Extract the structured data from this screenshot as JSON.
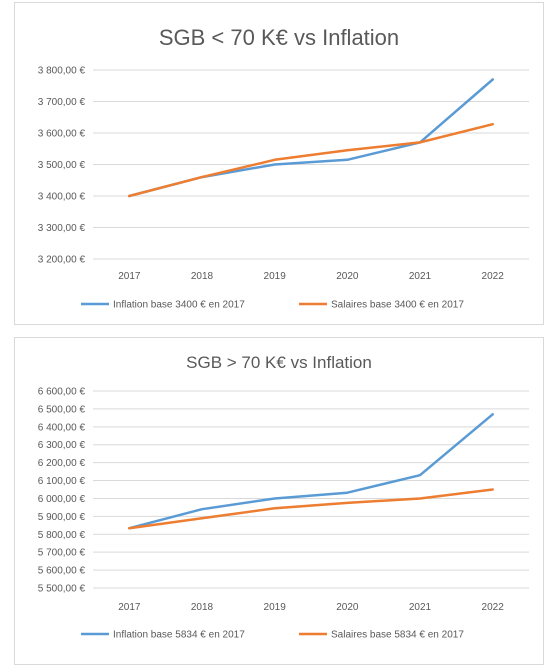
{
  "chart_data": [
    {
      "type": "line",
      "title": "SGB < 70 K€ vs Inflation",
      "categories": [
        "2017",
        "2018",
        "2019",
        "2020",
        "2021",
        "2022"
      ],
      "ylim": [
        3200,
        3800
      ],
      "ystep": 100,
      "yticks": [
        "3 200,00 €",
        "3 300,00 €",
        "3 400,00 €",
        "3 500,00 €",
        "3 600,00 €",
        "3 700,00 €",
        "3 800,00 €"
      ],
      "grid": true,
      "legend_position": "bottom",
      "series": [
        {
          "name": "Inflation base 3400 € en 2017",
          "color": "#5b9bd5",
          "values": [
            3400,
            3460,
            3500,
            3515,
            3570,
            3770
          ]
        },
        {
          "name": "Salaires base 3400 € en 2017",
          "color": "#ed7d31",
          "values": [
            3400,
            3460,
            3515,
            3545,
            3570,
            3628
          ]
        }
      ]
    },
    {
      "type": "line",
      "title": "SGB > 70 K€ vs Inflation",
      "categories": [
        "2017",
        "2018",
        "2019",
        "2020",
        "2021",
        "2022"
      ],
      "ylim": [
        5500,
        6600
      ],
      "ystep": 100,
      "yticks": [
        "5 500,00 €",
        "5 600,00 €",
        "5 700,00 €",
        "5 800,00 €",
        "5 900,00 €",
        "6 000,00 €",
        "6 100,00 €",
        "6 200,00 €",
        "6 300,00 €",
        "6 400,00 €",
        "6 500,00 €",
        "6 600,00 €"
      ],
      "grid": true,
      "legend_position": "bottom",
      "series": [
        {
          "name": "Inflation base 5834 € en 2017",
          "color": "#5b9bd5",
          "values": [
            5834,
            5940,
            6000,
            6032,
            6130,
            6470
          ]
        },
        {
          "name": "Salaires base 5834 € en 2017",
          "color": "#ed7d31",
          "values": [
            5834,
            5890,
            5945,
            5975,
            6000,
            6050
          ]
        }
      ]
    }
  ]
}
